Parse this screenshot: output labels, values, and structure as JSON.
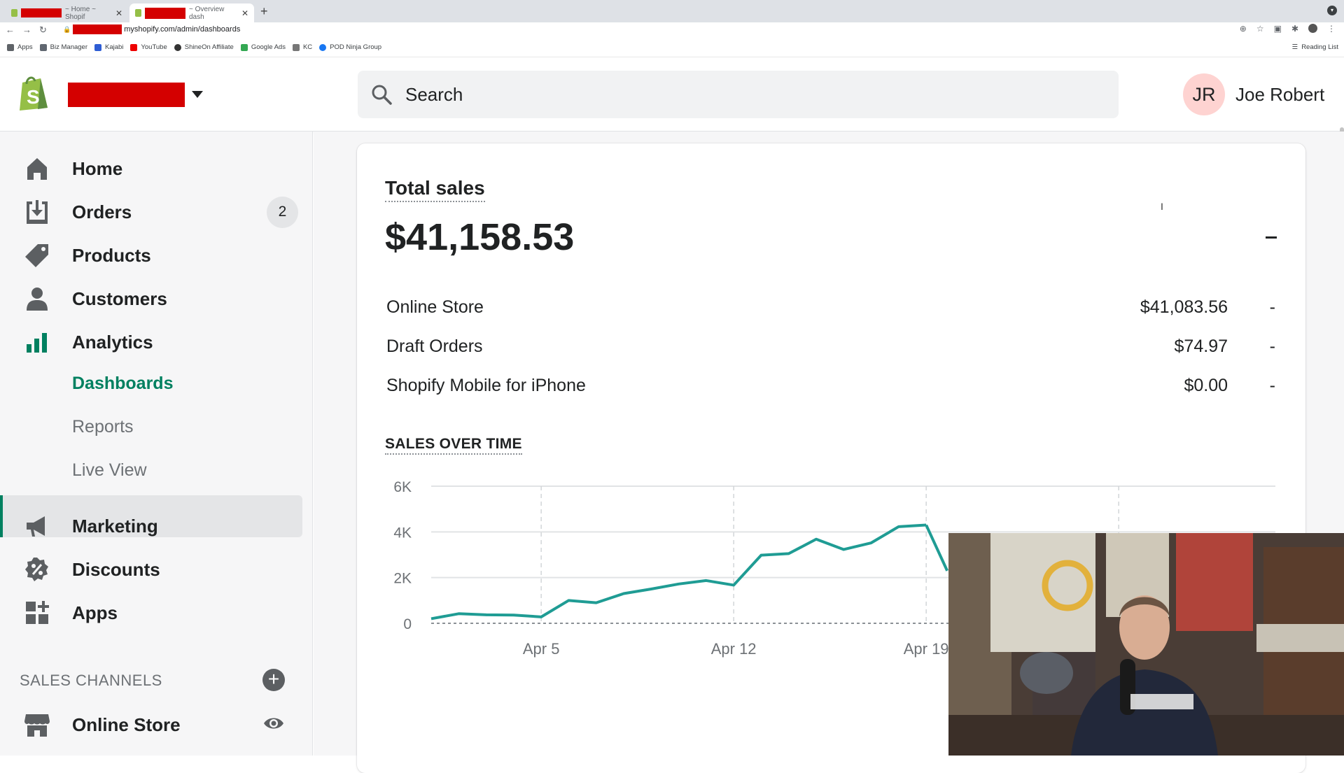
{
  "browser": {
    "tabs": [
      {
        "label": "~ Home ~ Shopif",
        "active": false
      },
      {
        "label": "~ Overview dash",
        "active": true
      }
    ],
    "url": "myshopify.com/admin/dashboards",
    "bookmarks": [
      "Apps",
      "Biz Manager",
      "Kajabi",
      "YouTube",
      "ShineOn Affiliate",
      "Google Ads",
      "KC",
      "POD Ninja Group"
    ],
    "reading_list": "Reading List"
  },
  "header": {
    "search_placeholder": "Search",
    "user_initials": "JR",
    "user_name": "Joe Robert"
  },
  "sidebar": {
    "items": [
      {
        "label": "Home",
        "icon": "home-icon"
      },
      {
        "label": "Orders",
        "icon": "orders-icon",
        "badge": "2"
      },
      {
        "label": "Products",
        "icon": "tag-icon"
      },
      {
        "label": "Customers",
        "icon": "person-icon"
      },
      {
        "label": "Analytics",
        "icon": "bar-chart-icon"
      }
    ],
    "analytics_sub": [
      {
        "label": "Dashboards",
        "selected": true
      },
      {
        "label": "Reports",
        "selected": false
      },
      {
        "label": "Live View",
        "selected": false
      }
    ],
    "items2": [
      {
        "label": "Marketing",
        "icon": "megaphone-icon"
      },
      {
        "label": "Discounts",
        "icon": "discount-icon"
      },
      {
        "label": "Apps",
        "icon": "apps-icon"
      }
    ],
    "sales_channels_heading": "SALES CHANNELS",
    "online_store": "Online Store"
  },
  "total_sales": {
    "title": "Total sales",
    "amount": "$41,158.53",
    "change": "–",
    "rows": [
      {
        "name": "Online Store",
        "value": "$41,083.56",
        "change": "-"
      },
      {
        "name": "Draft Orders",
        "value": "$74.97",
        "change": "-"
      },
      {
        "name": "Shopify Mobile for iPhone",
        "value": "$0.00",
        "change": "-"
      }
    ]
  },
  "chart_data": {
    "type": "line",
    "title": "SALES OVER TIME",
    "yticks": [
      "0",
      "2K",
      "4K",
      "6K"
    ],
    "ylim": [
      0,
      6000
    ],
    "xticks": [
      {
        "label": "Apr 5",
        "day": 5
      },
      {
        "label": "Apr 12",
        "day": 12
      },
      {
        "label": "Apr 19",
        "day": 19
      }
    ],
    "x": [
      1,
      2,
      3,
      4,
      5,
      6,
      7,
      8,
      9,
      10,
      11,
      12,
      13,
      14,
      15,
      16,
      17,
      18,
      19
    ],
    "values": [
      200,
      420,
      370,
      360,
      280,
      1000,
      900,
      1300,
      1500,
      1720,
      1870,
      1670,
      2980,
      3050,
      3680,
      3230,
      3520,
      4230,
      4300
    ],
    "color": "#1f9c94",
    "grid": true
  },
  "colors": {
    "accent": "#008060",
    "line": "#1f9c94",
    "brand": "#95bf47"
  }
}
